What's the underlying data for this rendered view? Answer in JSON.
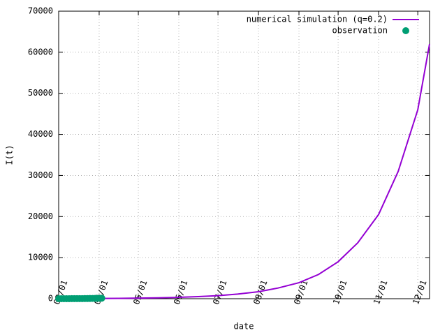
{
  "chart_data": {
    "type": "line",
    "xlabel": "date",
    "ylabel": "I(t)",
    "xlim": [
      "03/01",
      "12/10"
    ],
    "xticks": [
      "03/01",
      "04/01",
      "05/01",
      "06/01",
      "07/01",
      "08/01",
      "09/01",
      "10/01",
      "11/01",
      "12/01"
    ],
    "ylim": [
      0,
      70000
    ],
    "yticks": [
      0,
      10000,
      20000,
      30000,
      40000,
      50000,
      60000,
      70000
    ],
    "grid": true,
    "legend": "top-right",
    "series": [
      {
        "name": "numerical simulation (q=0.2)",
        "color": "#9400d3",
        "kind": "line",
        "x": [
          "03/01",
          "03/16",
          "04/01",
          "04/16",
          "05/01",
          "05/16",
          "06/01",
          "06/16",
          "07/01",
          "07/16",
          "08/01",
          "08/16",
          "09/01",
          "09/16",
          "10/01",
          "10/16",
          "11/01",
          "11/16",
          "12/01",
          "12/10"
        ],
        "values": [
          28,
          42,
          63,
          95,
          145,
          220,
          330,
          500,
          750,
          1130,
          1700,
          2600,
          3900,
          5900,
          9000,
          13600,
          20500,
          31000,
          46000,
          62000
        ]
      },
      {
        "name": "observation",
        "color": "#009e73",
        "kind": "points",
        "x": [
          "03/01",
          "03/03",
          "03/05",
          "03/07",
          "03/09",
          "03/11",
          "03/13",
          "03/15",
          "03/17",
          "03/19",
          "03/21",
          "03/23",
          "03/25",
          "03/27",
          "03/29",
          "03/31",
          "04/02",
          "04/03"
        ],
        "values": [
          2,
          3,
          5,
          7,
          9,
          12,
          15,
          19,
          24,
          30,
          37,
          45,
          55,
          66,
          80,
          95,
          112,
          125
        ]
      }
    ]
  }
}
